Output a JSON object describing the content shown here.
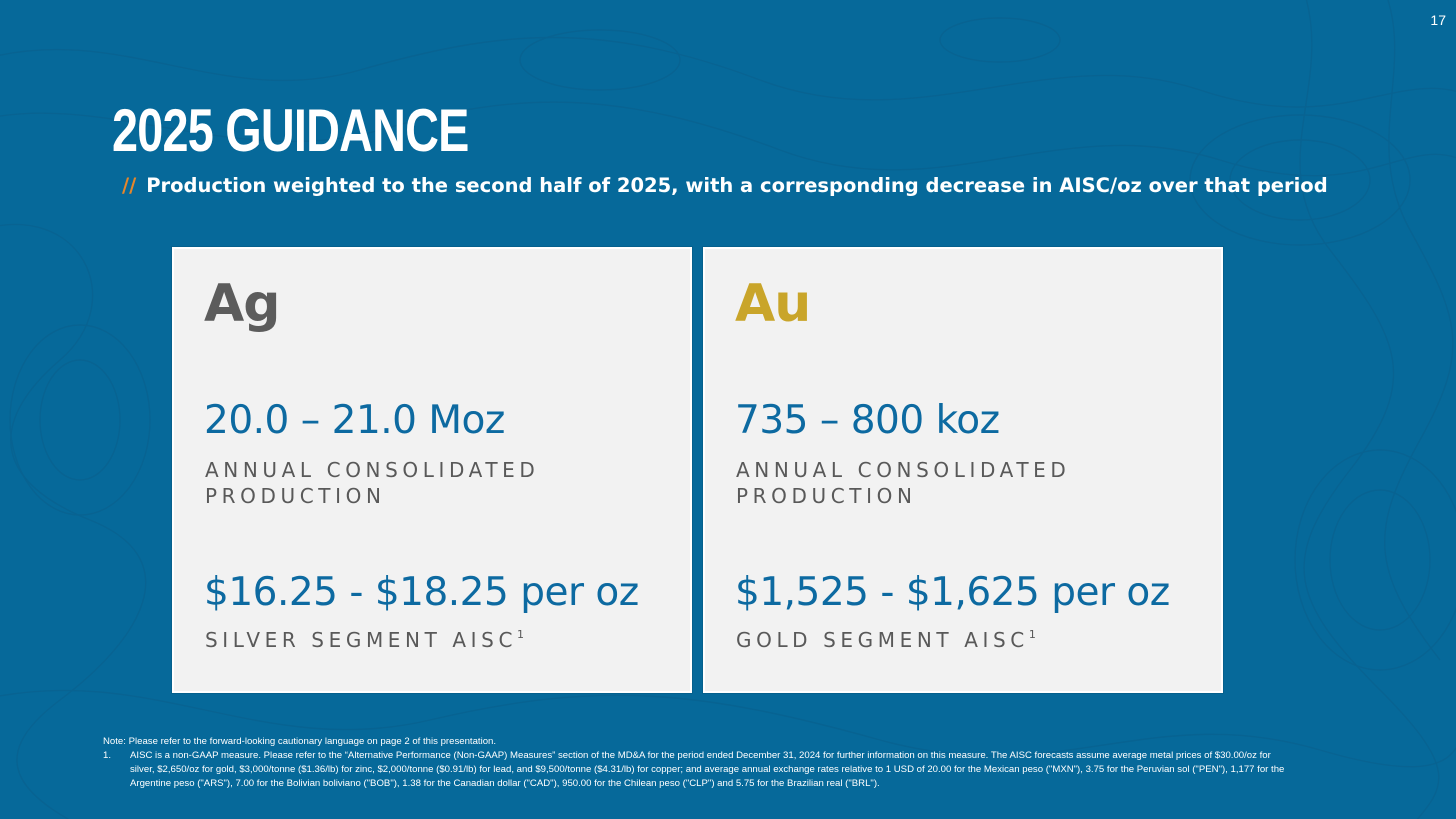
{
  "slide": {
    "page_number": "17",
    "title": "2025 GUIDANCE",
    "subtitle_marker": "//",
    "subtitle": "Production weighted to the second half of 2025, with a corresponding decrease in AISC/oz over that period"
  },
  "cards": [
    {
      "symbol": "Ag",
      "production_value": "20.0 – 21.0 Moz",
      "production_label": "ANNUAL CONSOLIDATED PRODUCTION",
      "aisc_value": "$16.25 - $18.25 per oz",
      "aisc_label": "SILVER SEGMENT AISC",
      "aisc_footnote_ref": "1"
    },
    {
      "symbol": "Au",
      "production_value": "735 – 800 koz",
      "production_label": "ANNUAL CONSOLIDATED PRODUCTION",
      "aisc_value": "$1,525 - $1,625 per oz",
      "aisc_label": "GOLD SEGMENT AISC",
      "aisc_footnote_ref": "1"
    }
  ],
  "footnotes": {
    "note": "Note: Please refer to the forward-looking cautionary language on page 2 of this presentation.",
    "items": [
      {
        "number": "1.",
        "text": "AISC is a non-GAAP measure. Please refer to the “Alternative Performance (Non-GAAP) Measures” section of the MD&A for the period ended December 31, 2024 for further information on this measure. The AISC forecasts assume average metal prices of $30.00/oz for silver, $2,650/oz for gold, $3,000/tonne ($1.36/lb) for zinc, $2,000/tonne ($0.91/lb) for lead, and $9,500/tonne ($4.31/lb) for copper; and average annual exchange rates relative to 1 USD of 20.00 for the Mexican peso (\"MXN\"), 3.75 for the Peruvian sol (\"PEN\"), 1,177 for the Argentine peso (\"ARS\"), 7.00 for the Bolivian boliviano (\"BOB\"), 1.38 for the Canadian dollar (\"CAD\"), 950.00 for the Chilean peso (\"CLP\") and 5.75 for the Brazilian real (\"BRL\")."
      }
    ]
  },
  "colors": {
    "background": "#06699a",
    "accent_slashes": "#e6862a",
    "value_blue": "#0d6aa1",
    "silver_symbol": "#5c5c5c",
    "gold_symbol": "#c9a52a",
    "card_background": "#f2f2f2"
  }
}
